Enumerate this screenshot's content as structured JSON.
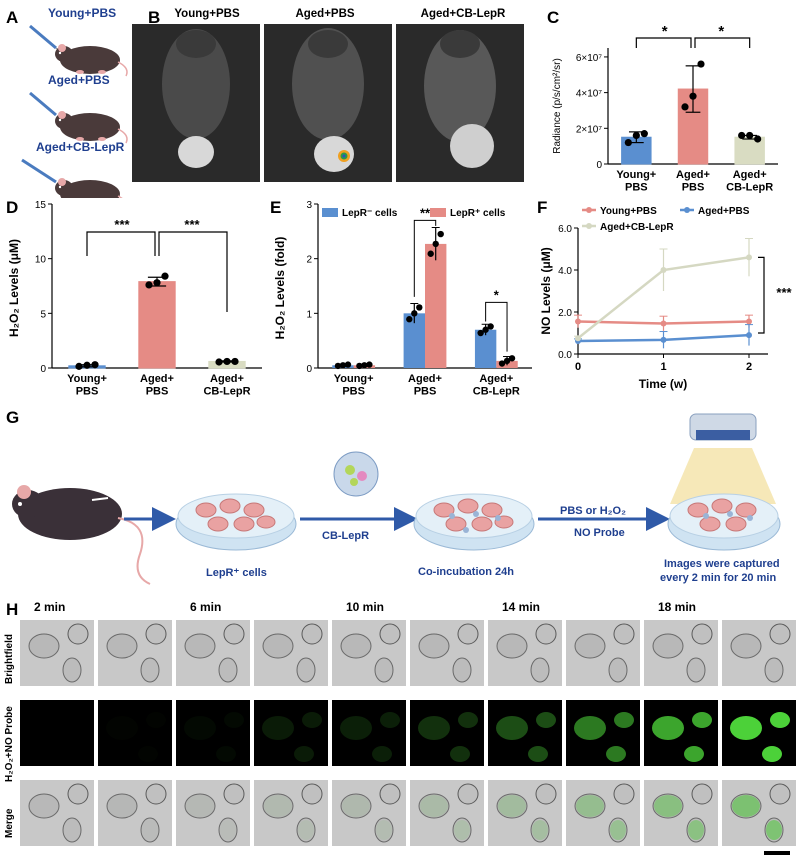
{
  "panel_labels": {
    "A": "A",
    "B": "B",
    "C": "C",
    "D": "D",
    "E": "E",
    "F": "F",
    "G": "G",
    "H": "H"
  },
  "panelA": {
    "mice": [
      "Young+PBS",
      "Aged+PBS",
      "Aged+CB-LepR"
    ]
  },
  "panelB": {
    "headers": [
      "Young+PBS",
      "Aged+PBS",
      "Aged+CB-LepR"
    ]
  },
  "panelG": {
    "steps": [
      "LepR⁺ cells",
      "CB-LepR",
      "Co-incubation 24h",
      "Images were captured",
      "every 2 min for 20 min"
    ],
    "arrow_top": "PBS or H₂O₂",
    "arrow_bottom": "NO Probe"
  },
  "panelH": {
    "times": [
      "2 min",
      "6 min",
      "10 min",
      "14 min",
      "18 min"
    ],
    "rows": [
      "Brightfield",
      "H₂O₂+NO Probe",
      "Merge"
    ],
    "green_intensity": [
      0.0,
      0.02,
      0.04,
      0.12,
      0.14,
      0.22,
      0.35,
      0.55,
      0.75,
      0.95
    ]
  },
  "colors": {
    "blue": "#5a8fd0",
    "red": "#e58b85",
    "beige": "#d9dcc2",
    "line_blue": "#5a8fd0",
    "line_red": "#e58b85",
    "line_beige": "#d5d8c2",
    "title_blue": "#1f3f8f"
  },
  "chart_data": [
    {
      "id": "C",
      "type": "bar",
      "categories": [
        "Young+\nPBS",
        "Aged+\nPBS",
        "Aged+\nCB-LepR"
      ],
      "values": [
        15000000.0,
        42000000.0,
        15000000.0
      ],
      "errors": [
        3000000.0,
        13000000.0,
        1000000.0
      ],
      "points": [
        [
          12000000.0,
          16000000.0,
          17000000.0
        ],
        [
          32000000.0,
          38000000.0,
          56000000.0
        ],
        [
          16000000.0,
          16000000.0,
          14000000.0
        ]
      ],
      "ylabel": "Radiance (p/s/cm²/sr)",
      "ylim": [
        0,
        65000000.0
      ],
      "yticks": [
        0,
        20000000.0,
        40000000.0,
        60000000.0
      ],
      "ytick_labels": [
        "0",
        "2×10⁷",
        "4×10⁷",
        "6×10⁷"
      ],
      "significance": [
        {
          "pair": [
            0,
            1
          ],
          "label": "*"
        },
        {
          "pair": [
            1,
            2
          ],
          "label": "*"
        }
      ]
    },
    {
      "id": "D",
      "type": "bar",
      "categories": [
        "Young+\nPBS",
        "Aged+\nPBS",
        "Aged+\nCB-LepR"
      ],
      "values": [
        0.2,
        7.9,
        0.6
      ],
      "errors": [
        0.1,
        0.4,
        0.05
      ],
      "points": [
        [
          0.15,
          0.25,
          0.3
        ],
        [
          7.6,
          7.8,
          8.4
        ],
        [
          0.55,
          0.6,
          0.6
        ]
      ],
      "ylabel": "H₂O₂ Levels (μM)",
      "ylim": [
        0,
        15
      ],
      "yticks": [
        0,
        5,
        10,
        15
      ],
      "ytick_labels": [
        "0",
        "5",
        "10",
        "15"
      ],
      "significance": [
        {
          "pair": [
            0,
            1
          ],
          "label": "***"
        },
        {
          "pair": [
            1,
            2
          ],
          "label": "***"
        }
      ]
    },
    {
      "id": "E",
      "type": "bar",
      "categories": [
        "Young+\nPBS",
        "Aged+\nPBS",
        "Aged+\nCB-LepR"
      ],
      "series": [
        {
          "name": "LepR⁻ cells",
          "values": [
            0.05,
            1.0,
            0.7
          ],
          "errors": [
            0.02,
            0.18,
            0.1
          ]
        },
        {
          "name": "LepR⁺ cells",
          "values": [
            0.05,
            2.27,
            0.13
          ],
          "errors": [
            0.02,
            0.3,
            0.08
          ]
        }
      ],
      "ylabel": "H₂O₂ Levels (fold)",
      "ylim": [
        0,
        3
      ],
      "yticks": [
        0,
        1,
        2,
        3
      ],
      "ytick_labels": [
        "0",
        "1",
        "2",
        "3"
      ],
      "significance": [
        {
          "group": 1,
          "label": "**"
        },
        {
          "group": 2,
          "label": "*"
        }
      ]
    },
    {
      "id": "F",
      "type": "line",
      "x": [
        0,
        1,
        2
      ],
      "series": [
        {
          "name": "Young+PBS",
          "values": [
            1.55,
            1.45,
            1.55
          ],
          "errors": [
            0.3,
            0.35,
            0.3
          ]
        },
        {
          "name": "Aged+PBS",
          "values": [
            0.62,
            0.67,
            0.9
          ],
          "errors": [
            0.1,
            0.4,
            0.5
          ]
        },
        {
          "name": "Aged+CB-LepR",
          "values": [
            0.75,
            4.0,
            4.6
          ],
          "errors": [
            0.1,
            1.0,
            0.9
          ]
        }
      ],
      "xlabel": "Time (w)",
      "ylabel": "NO Levels (μM)",
      "ylim": [
        0,
        6
      ],
      "yticks": [
        0,
        2,
        4,
        6
      ],
      "ytick_labels": [
        "0.0",
        "2.0",
        "4.0",
        "6.0"
      ],
      "xticks": [
        "0",
        "1",
        "2"
      ],
      "significance": [
        {
          "label": "***"
        }
      ]
    }
  ]
}
